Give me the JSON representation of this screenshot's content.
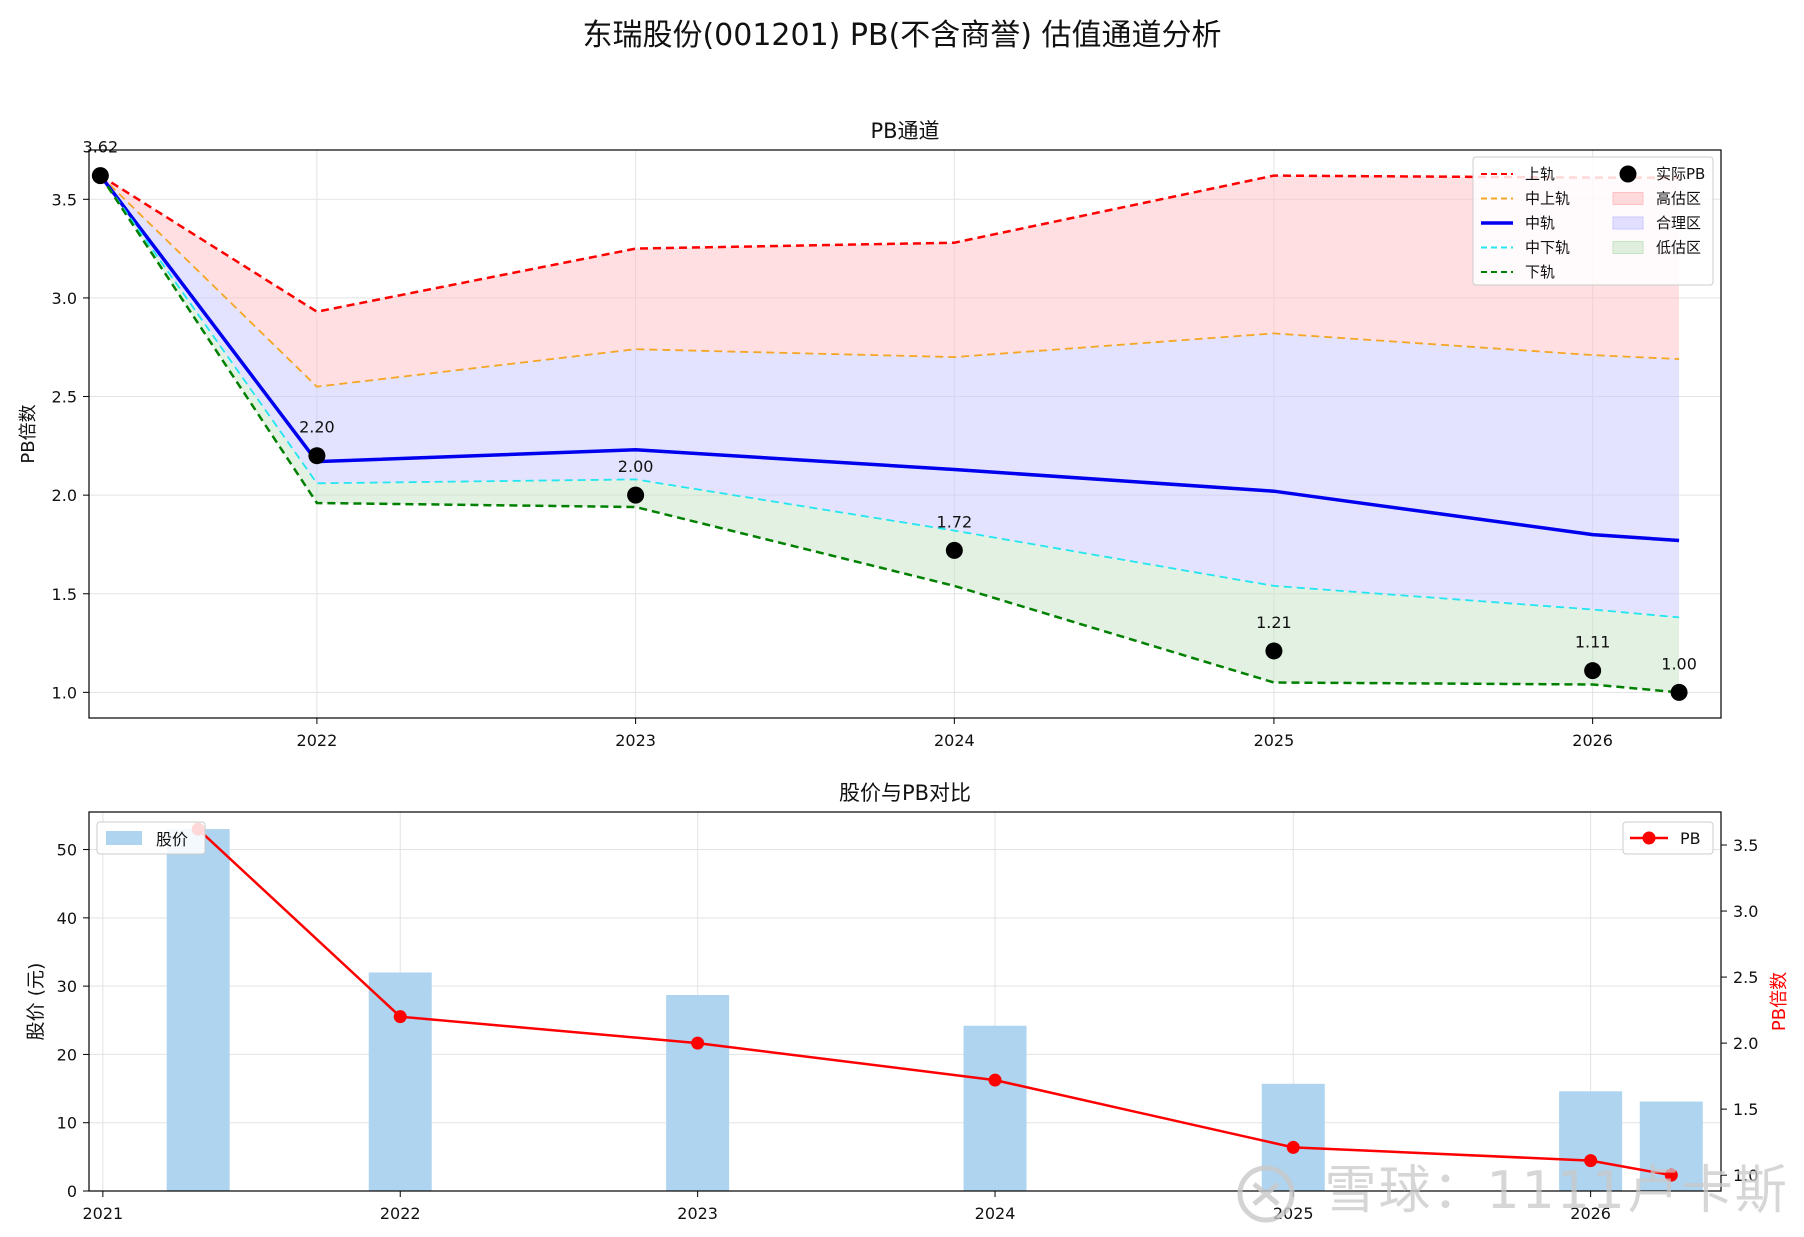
{
  "figure_title": "东瑞股份(001201) PB(不含商誉) 估值通道分析",
  "watermark": "雪球：1111卢卡斯",
  "chart_data": [
    {
      "type": "line",
      "title": "PB通道",
      "ylabel": "PB倍数",
      "xlabel": "",
      "xlim": [
        "2021-04-15",
        "2026-05-28"
      ],
      "ylim": [
        0.87,
        3.75
      ],
      "xticks": [
        "2022",
        "2023",
        "2024",
        "2025",
        "2026"
      ],
      "yticks": [
        "1.0",
        "1.5",
        "2.0",
        "2.5",
        "3.0",
        "3.5"
      ],
      "ytick_values": [
        1.0,
        1.5,
        2.0,
        2.5,
        3.0,
        3.5
      ],
      "grid": true,
      "legend_position": "top-right",
      "x": [
        "2021-04-28",
        "2022-01-01",
        "2023-01-01",
        "2024-01-01",
        "2025-01-01",
        "2026-01-01",
        "2026-04-10"
      ],
      "series": [
        {
          "name": "上轨",
          "style": "dashed",
          "color": "#ff0000",
          "values": [
            3.62,
            2.93,
            3.25,
            3.28,
            3.62,
            3.61,
            3.61
          ]
        },
        {
          "name": "中上轨",
          "style": "dashed",
          "color": "#f5a623",
          "values": [
            3.62,
            2.55,
            2.74,
            2.7,
            2.82,
            2.71,
            2.69
          ]
        },
        {
          "name": "中轨",
          "style": "solid",
          "color": "#0000ee",
          "values": [
            3.62,
            2.17,
            2.23,
            2.13,
            2.02,
            1.8,
            1.77
          ]
        },
        {
          "name": "中下轨",
          "style": "dashed",
          "color": "#22e6f0",
          "values": [
            3.62,
            2.06,
            2.08,
            1.82,
            1.54,
            1.42,
            1.38
          ]
        },
        {
          "name": "下轨",
          "style": "dashed",
          "color": "#008000",
          "values": [
            3.62,
            1.96,
            1.94,
            1.54,
            1.05,
            1.04,
            1.0
          ]
        }
      ],
      "areas": [
        {
          "name": "高估区",
          "color": "#ffc0c4",
          "from": "中上轨",
          "to": "上轨"
        },
        {
          "name": "合理区",
          "color": "#c8c8ff",
          "from": "中下轨",
          "to": "中上轨"
        },
        {
          "name": "低估区",
          "color": "#c5e3c5",
          "from": "下轨",
          "to": "中下轨"
        }
      ],
      "points": {
        "name": "实际PB",
        "color": "#000000",
        "values": [
          3.62,
          2.2,
          2.0,
          1.72,
          1.21,
          1.11,
          1.0
        ],
        "labels": [
          "3.62",
          "2.20",
          "2.00",
          "1.72",
          "1.21",
          "1.11",
          "1.00"
        ]
      },
      "legend": [
        "上轨",
        "中上轨",
        "中轨",
        "中下轨",
        "下轨",
        "实际PB",
        "高估区",
        "合理区",
        "低估区"
      ]
    },
    {
      "type": "bar",
      "title": "股价与PB对比",
      "ylabel": "股价 (元)",
      "y2label": "PB倍数",
      "y2label_color": "#ff0000",
      "xlim": [
        "2020-12-15",
        "2026-06-10"
      ],
      "ylim": [
        0,
        55.5
      ],
      "y2lim": [
        0.88,
        3.75
      ],
      "xticks": [
        "2021",
        "2022",
        "2023",
        "2024",
        "2025",
        "2026"
      ],
      "yticks": [
        "0",
        "10",
        "20",
        "30",
        "40",
        "50"
      ],
      "ytick_values": [
        0,
        10,
        20,
        30,
        40,
        50
      ],
      "y2ticks": [
        "1.0",
        "1.5",
        "2.0",
        "2.5",
        "3.0",
        "3.5"
      ],
      "y2tick_values": [
        1.0,
        1.5,
        2.0,
        2.5,
        3.0,
        3.5
      ],
      "grid": true,
      "legend_position": "top-left / top-right",
      "x": [
        "2021-04-28",
        "2022-01-01",
        "2023-01-01",
        "2024-01-01",
        "2025-01-01",
        "2026-01-01",
        "2026-04-10"
      ],
      "bars": {
        "name": "股价",
        "color": "#aed4ef",
        "values": [
          53.0,
          32.0,
          28.7,
          24.2,
          15.7,
          14.6,
          13.1
        ]
      },
      "line": {
        "name": "PB",
        "color": "#ff0000",
        "values": [
          3.62,
          2.2,
          2.0,
          1.72,
          1.21,
          1.11,
          1.0
        ]
      }
    }
  ]
}
